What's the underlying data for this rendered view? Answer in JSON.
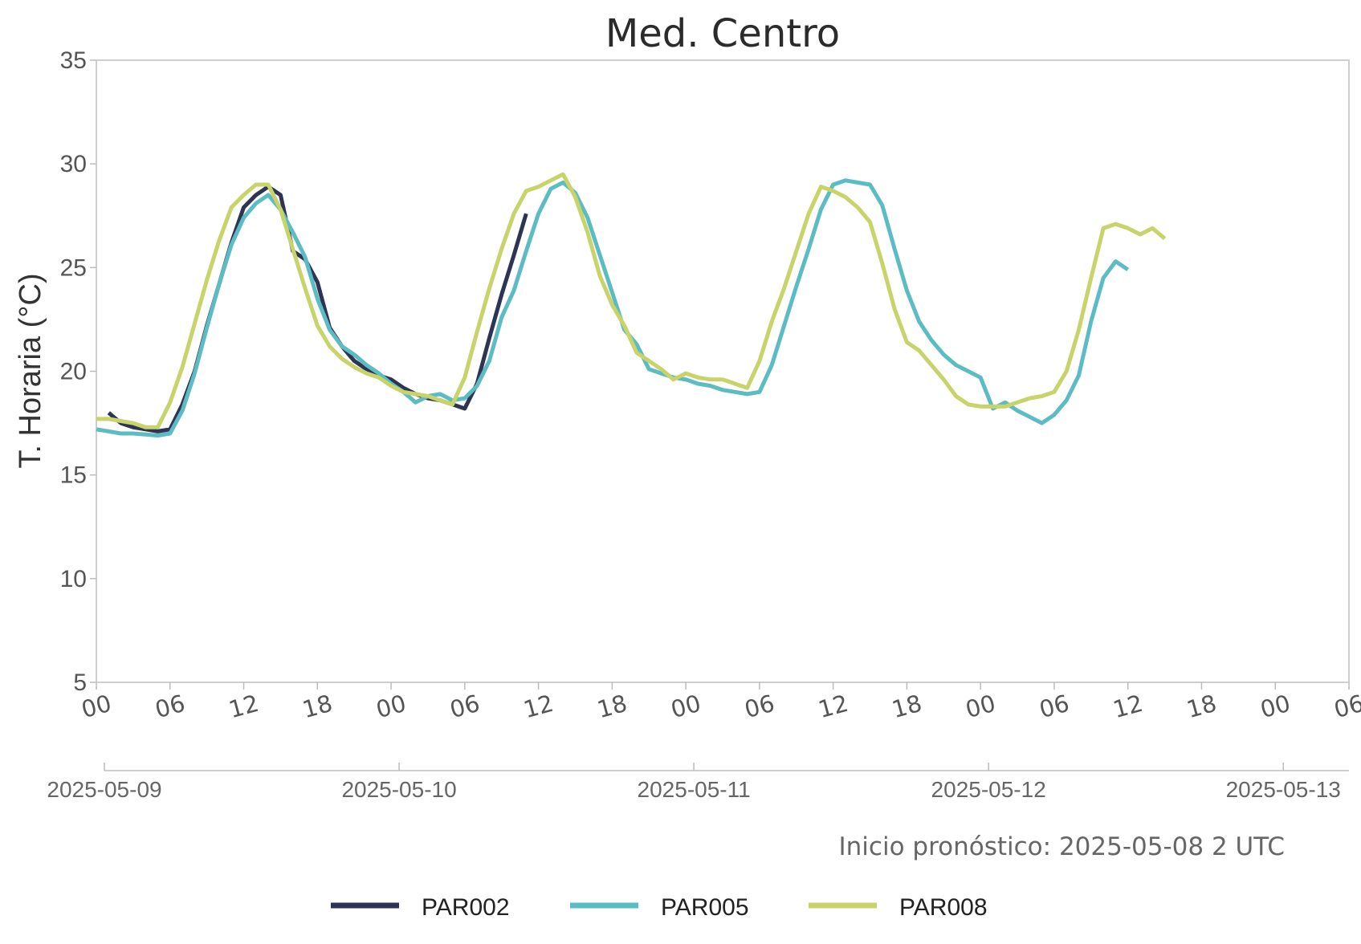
{
  "chart_data": {
    "type": "line",
    "title": "Med. Centro",
    "ylabel": "T. Horaria (°C)",
    "xlabel": "",
    "ylim": [
      5,
      35
    ],
    "yticks": [
      5,
      10,
      15,
      20,
      25,
      30,
      35
    ],
    "xlim_hours": [
      0,
      102
    ],
    "hour_ticks": [
      "00",
      "06",
      "12",
      "18",
      "00",
      "06",
      "12",
      "18",
      "00",
      "06",
      "12",
      "18",
      "00",
      "06",
      "12",
      "18",
      "00",
      "06"
    ],
    "date_ticks": [
      "2025-05-09",
      "2025-05-10",
      "2025-05-11",
      "2025-05-12",
      "2025-05-13"
    ],
    "note": "Inicio pronóstico: 2025-05-08 2 UTC",
    "grid": false,
    "legend_position": "bottom",
    "series": [
      {
        "name": "PAR002",
        "color": "#2e3554",
        "points": [
          [
            1,
            18.0
          ],
          [
            2,
            17.5
          ],
          [
            3,
            17.3
          ],
          [
            4,
            17.2
          ],
          [
            5,
            17.1
          ],
          [
            6,
            17.2
          ],
          [
            7,
            18.4
          ],
          [
            8,
            20.0
          ],
          [
            9,
            22.2
          ],
          [
            10,
            24.2
          ],
          [
            11,
            26.2
          ],
          [
            12,
            27.9
          ],
          [
            13,
            28.5
          ],
          [
            14,
            28.9
          ],
          [
            15,
            28.5
          ],
          [
            16,
            25.8
          ],
          [
            17,
            25.4
          ],
          [
            18,
            24.3
          ],
          [
            19,
            22.1
          ],
          [
            20,
            21.2
          ],
          [
            21,
            20.5
          ],
          [
            22,
            20.1
          ],
          [
            23,
            19.8
          ],
          [
            24,
            19.6
          ],
          [
            25,
            19.2
          ],
          [
            26,
            18.9
          ],
          [
            27,
            18.7
          ],
          [
            28,
            18.6
          ],
          [
            29,
            18.4
          ],
          [
            30,
            18.2
          ],
          [
            31,
            19.4
          ],
          [
            32,
            21.6
          ],
          [
            33,
            23.7
          ],
          [
            34,
            25.6
          ],
          [
            35,
            27.6
          ]
        ]
      },
      {
        "name": "PAR005",
        "color": "#5bbcc4",
        "points": [
          [
            0,
            17.2
          ],
          [
            1,
            17.1
          ],
          [
            2,
            17.0
          ],
          [
            3,
            17.0
          ],
          [
            4,
            16.95
          ],
          [
            5,
            16.9
          ],
          [
            6,
            17.0
          ],
          [
            7,
            18.1
          ],
          [
            8,
            19.9
          ],
          [
            9,
            22.1
          ],
          [
            10,
            24.2
          ],
          [
            11,
            26.1
          ],
          [
            12,
            27.4
          ],
          [
            13,
            28.1
          ],
          [
            14,
            28.5
          ],
          [
            15,
            27.8
          ],
          [
            16,
            26.7
          ],
          [
            17,
            25.5
          ],
          [
            18,
            23.5
          ],
          [
            19,
            22.0
          ],
          [
            20,
            21.2
          ],
          [
            21,
            20.8
          ],
          [
            22,
            20.3
          ],
          [
            23,
            19.9
          ],
          [
            24,
            19.4
          ],
          [
            25,
            19.0
          ],
          [
            26,
            18.5
          ],
          [
            27,
            18.8
          ],
          [
            28,
            18.9
          ],
          [
            29,
            18.6
          ],
          [
            30,
            18.7
          ],
          [
            31,
            19.3
          ],
          [
            32,
            20.5
          ],
          [
            33,
            22.6
          ],
          [
            34,
            23.9
          ],
          [
            35,
            25.8
          ],
          [
            36,
            27.6
          ],
          [
            37,
            28.8
          ],
          [
            38,
            29.1
          ],
          [
            39,
            28.6
          ],
          [
            40,
            27.4
          ],
          [
            41,
            25.6
          ],
          [
            42,
            23.8
          ],
          [
            43,
            22.0
          ],
          [
            44,
            21.3
          ],
          [
            45,
            20.1
          ],
          [
            46,
            19.9
          ],
          [
            47,
            19.7
          ],
          [
            48,
            19.6
          ],
          [
            49,
            19.4
          ],
          [
            50,
            19.3
          ],
          [
            51,
            19.1
          ],
          [
            52,
            19.0
          ],
          [
            53,
            18.9
          ],
          [
            54,
            19.0
          ],
          [
            55,
            20.3
          ],
          [
            56,
            22.2
          ],
          [
            57,
            24.1
          ],
          [
            58,
            25.9
          ],
          [
            59,
            27.8
          ],
          [
            60,
            29.0
          ],
          [
            61,
            29.2
          ],
          [
            62,
            29.1
          ],
          [
            63,
            29.0
          ],
          [
            64,
            28.0
          ],
          [
            65,
            25.9
          ],
          [
            66,
            23.9
          ],
          [
            67,
            22.4
          ],
          [
            68,
            21.5
          ],
          [
            69,
            20.8
          ],
          [
            70,
            20.3
          ],
          [
            71,
            20.0
          ],
          [
            72,
            19.7
          ],
          [
            73,
            18.2
          ],
          [
            74,
            18.5
          ],
          [
            75,
            18.1
          ],
          [
            76,
            17.8
          ],
          [
            77,
            17.5
          ],
          [
            78,
            17.9
          ],
          [
            79,
            18.6
          ],
          [
            80,
            19.8
          ],
          [
            81,
            22.4
          ],
          [
            82,
            24.5
          ],
          [
            83,
            25.3
          ],
          [
            84,
            24.9
          ]
        ]
      },
      {
        "name": "PAR008",
        "color": "#c8d36a",
        "points": [
          [
            0,
            17.7
          ],
          [
            1,
            17.7
          ],
          [
            2,
            17.6
          ],
          [
            3,
            17.5
          ],
          [
            4,
            17.3
          ],
          [
            5,
            17.3
          ],
          [
            6,
            18.5
          ],
          [
            7,
            20.2
          ],
          [
            8,
            22.3
          ],
          [
            9,
            24.4
          ],
          [
            10,
            26.3
          ],
          [
            11,
            27.9
          ],
          [
            12,
            28.5
          ],
          [
            13,
            29.0
          ],
          [
            14,
            29.0
          ],
          [
            15,
            27.8
          ],
          [
            16,
            25.9
          ],
          [
            17,
            24.0
          ],
          [
            18,
            22.2
          ],
          [
            19,
            21.2
          ],
          [
            20,
            20.6
          ],
          [
            21,
            20.2
          ],
          [
            22,
            19.9
          ],
          [
            23,
            19.7
          ],
          [
            24,
            19.3
          ],
          [
            25,
            19.0
          ],
          [
            26,
            18.9
          ],
          [
            27,
            18.8
          ],
          [
            28,
            18.6
          ],
          [
            29,
            18.4
          ],
          [
            30,
            19.7
          ],
          [
            31,
            21.9
          ],
          [
            32,
            24.0
          ],
          [
            33,
            25.9
          ],
          [
            34,
            27.6
          ],
          [
            35,
            28.7
          ],
          [
            36,
            28.9
          ],
          [
            37,
            29.2
          ],
          [
            38,
            29.5
          ],
          [
            39,
            28.4
          ],
          [
            40,
            26.7
          ],
          [
            41,
            24.6
          ],
          [
            42,
            23.2
          ],
          [
            43,
            22.2
          ],
          [
            44,
            20.9
          ],
          [
            45,
            20.5
          ],
          [
            46,
            20.1
          ],
          [
            47,
            19.6
          ],
          [
            48,
            19.9
          ],
          [
            49,
            19.7
          ],
          [
            50,
            19.6
          ],
          [
            51,
            19.6
          ],
          [
            52,
            19.4
          ],
          [
            53,
            19.2
          ],
          [
            54,
            20.5
          ],
          [
            55,
            22.4
          ],
          [
            56,
            24.0
          ],
          [
            57,
            25.8
          ],
          [
            58,
            27.6
          ],
          [
            59,
            28.9
          ],
          [
            60,
            28.7
          ],
          [
            61,
            28.4
          ],
          [
            62,
            27.9
          ],
          [
            63,
            27.2
          ],
          [
            64,
            25.2
          ],
          [
            65,
            23.0
          ],
          [
            66,
            21.4
          ],
          [
            67,
            21.0
          ],
          [
            68,
            20.3
          ],
          [
            69,
            19.6
          ],
          [
            70,
            18.8
          ],
          [
            71,
            18.4
          ],
          [
            72,
            18.3
          ],
          [
            73,
            18.3
          ],
          [
            74,
            18.3
          ],
          [
            75,
            18.5
          ],
          [
            76,
            18.7
          ],
          [
            77,
            18.8
          ],
          [
            78,
            19.0
          ],
          [
            79,
            20.0
          ],
          [
            80,
            22.0
          ],
          [
            81,
            24.5
          ],
          [
            82,
            26.9
          ],
          [
            83,
            27.1
          ],
          [
            84,
            26.9
          ],
          [
            85,
            26.6
          ],
          [
            86,
            26.9
          ],
          [
            87,
            26.4
          ]
        ]
      }
    ]
  }
}
